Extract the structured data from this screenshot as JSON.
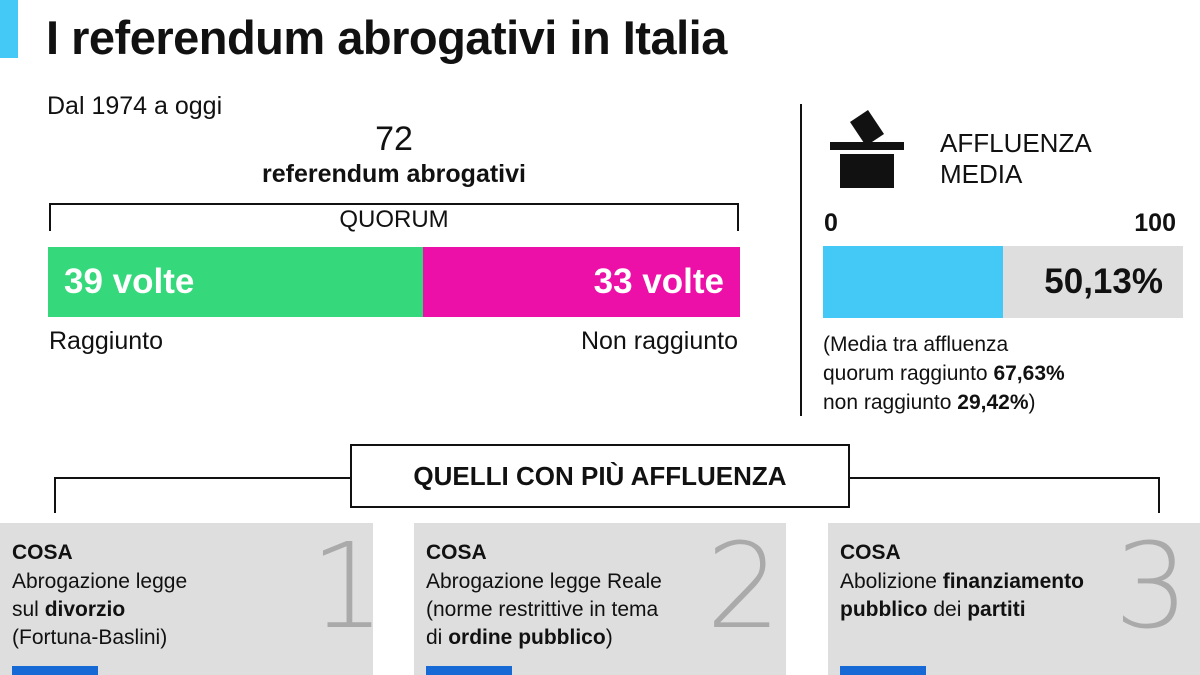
{
  "header": {
    "title": "I referendum abrogativi in Italia"
  },
  "summary": {
    "subtitle": "Dal 1974 a oggi",
    "total_number": "72",
    "total_label": "referendum abrogativi",
    "quorum_label": "QUORUM"
  },
  "chart_data": {
    "type": "bar",
    "orientation": "horizontal-stacked",
    "total": 72,
    "categories": [
      "Raggiunto",
      "Non raggiunto"
    ],
    "values": [
      39,
      33
    ],
    "value_labels": [
      "39 volte",
      "33 volte"
    ],
    "colors": [
      "#35d87a",
      "#ec10a8"
    ]
  },
  "affluenza": {
    "title_line1": "AFFLUENZA",
    "title_line2": "MEDIA",
    "scale_min": "0",
    "scale_max": "100",
    "value": 50.13,
    "value_label": "50,13%",
    "fill_color": "#44c8f5",
    "note": {
      "line1": "(Media tra affluenza",
      "line2_text": "quorum raggiunto ",
      "line2_bold": "67,63%",
      "line3_text": "non raggiunto ",
      "line3_bold": "29,42%",
      "line3_end": ")"
    }
  },
  "section": {
    "title": "QUELLI CON PIÙ AFFLUENZA"
  },
  "cards": [
    {
      "rank": "1",
      "label": "COSA",
      "l1": "Abrogazione legge",
      "l2a": "sul ",
      "l2b": "divorzio",
      "l3": "(Fortuna-Baslini)"
    },
    {
      "rank": "2",
      "label": "COSA",
      "l1": "Abrogazione legge Reale",
      "l2": "(norme restrittive in tema",
      "l3a": "di ",
      "l3b": "ordine pubblico",
      "l3c": ")"
    },
    {
      "rank": "3",
      "label": "COSA",
      "l1a": "Abolizione ",
      "l1b": "finanziamento",
      "l2a": "pubblico",
      "l2b": " dei ",
      "l2c": "partiti"
    }
  ],
  "colors": {
    "accent": "#44c8f5",
    "card_bg": "#dedede",
    "tag": "#1769d6"
  }
}
